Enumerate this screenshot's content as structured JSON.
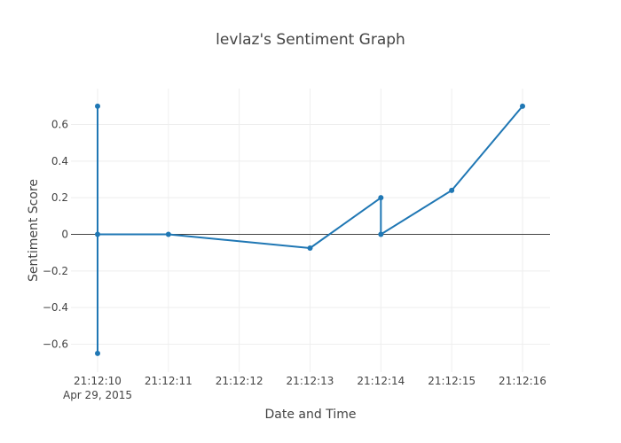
{
  "chart_data": {
    "type": "line",
    "title": "levlaz's Sentiment Graph",
    "xlabel": "Date and Time",
    "ylabel": "Sentiment Score",
    "x_ticks": [
      {
        "value": 0,
        "label": "21:12:10",
        "sublabel": "Apr 29, 2015"
      },
      {
        "value": 1,
        "label": "21:12:11"
      },
      {
        "value": 2,
        "label": "21:12:12"
      },
      {
        "value": 3,
        "label": "21:12:13"
      },
      {
        "value": 4,
        "label": "21:12:14"
      },
      {
        "value": 5,
        "label": "21:12:15"
      },
      {
        "value": 6,
        "label": "21:12:16"
      }
    ],
    "y_ticks": [
      {
        "value": 0.6,
        "label": "0.6"
      },
      {
        "value": 0.4,
        "label": "0.4"
      },
      {
        "value": 0.2,
        "label": "0.2"
      },
      {
        "value": 0,
        "label": "0"
      },
      {
        "value": -0.2,
        "label": "−0.2"
      },
      {
        "value": -0.4,
        "label": "−0.4"
      },
      {
        "value": -0.6,
        "label": "−0.6"
      }
    ],
    "xlim": [
      "2015-04-29 21:12:10",
      "2015-04-29 21:12:16.4"
    ],
    "ylim": [
      -0.7,
      0.79
    ],
    "grid": true,
    "zero_line": true,
    "series": [
      {
        "color": "#1f77b4",
        "points": [
          {
            "x": "2015-04-29 21:12:10",
            "y": 0.7
          },
          {
            "x": "2015-04-29 21:12:10",
            "y": -0.65
          },
          {
            "x": "2015-04-29 21:12:10",
            "y": 0.0
          },
          {
            "x": "2015-04-29 21:12:11",
            "y": 0.0
          },
          {
            "x": "2015-04-29 21:12:13",
            "y": -0.075
          },
          {
            "x": "2015-04-29 21:12:14",
            "y": 0.2
          },
          {
            "x": "2015-04-29 21:12:14",
            "y": 0.0
          },
          {
            "x": "2015-04-29 21:12:15",
            "y": 0.24
          },
          {
            "x": "2015-04-29 21:12:16",
            "y": 0.7
          }
        ]
      }
    ]
  },
  "colors": {
    "grid": "#eeeeee",
    "zero_line": "#444444",
    "text": "#444444",
    "series": "#1f77b4"
  }
}
